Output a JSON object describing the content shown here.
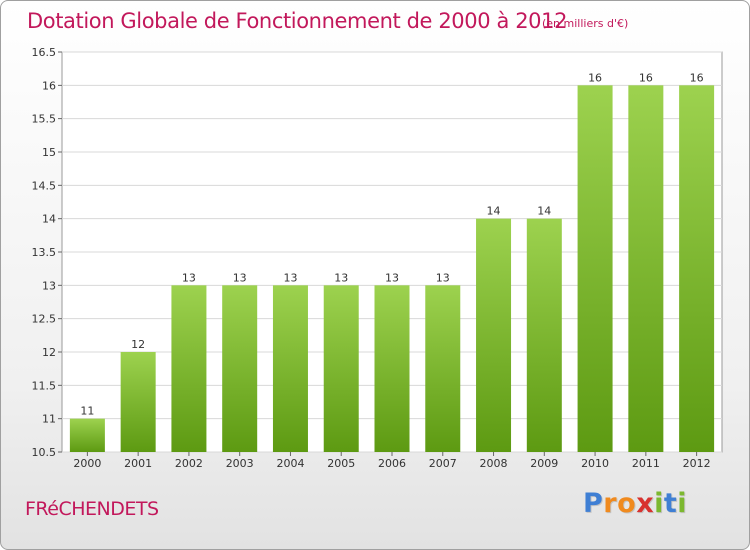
{
  "header": {
    "title": "Dotation Globale de Fonctionnement de 2000 à 2012",
    "subtitle": "(en milliers d'€)"
  },
  "footer": {
    "commune": "FRéCHENDETS",
    "logo_letters": [
      "P",
      "r",
      "o",
      "x",
      "i",
      "t",
      "i"
    ],
    "logo_colors": [
      "#3f7fd4",
      "#f08a1e",
      "#f08a1e",
      "#d8322f",
      "#7cb82f",
      "#3f7fd4",
      "#7cb82f"
    ]
  },
  "colors": {
    "title": "#c2185b",
    "bar_light": "#9dd24f",
    "bar_dark": "#5d9a12"
  },
  "chart_data": {
    "type": "bar",
    "title": "Dotation Globale de Fonctionnement de 2000 à 2012",
    "subtitle": "(en milliers d'€)",
    "categories": [
      "2000",
      "2001",
      "2002",
      "2003",
      "2004",
      "2005",
      "2006",
      "2007",
      "2008",
      "2009",
      "2010",
      "2011",
      "2012"
    ],
    "values": [
      11,
      12,
      13,
      13,
      13,
      13,
      13,
      13,
      14,
      14,
      16,
      16,
      16
    ],
    "ylim": [
      10.5,
      16.5
    ],
    "yticks": [
      "10.5",
      "11",
      "11.5",
      "12",
      "12.5",
      "13",
      "13.5",
      "14",
      "14.5",
      "15",
      "15.5",
      "16",
      "16.5"
    ],
    "grid": true,
    "xlabel": "",
    "ylabel": ""
  }
}
